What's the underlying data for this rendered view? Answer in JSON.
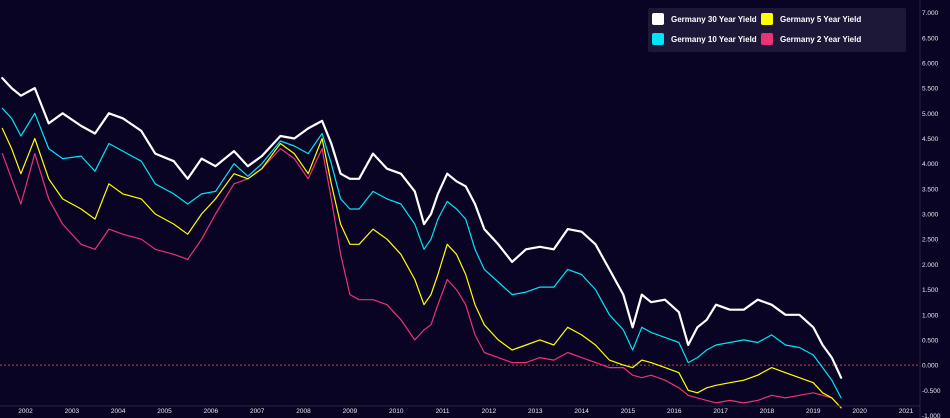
{
  "chart_data": {
    "type": "line",
    "title": "",
    "xlabel": "",
    "ylabel": "",
    "x_ticks": [
      "2002",
      "2003",
      "2004",
      "2005",
      "2006",
      "2007",
      "2008",
      "2009",
      "2010",
      "2011",
      "2012",
      "2013",
      "2014",
      "2015",
      "2016",
      "2017",
      "2018",
      "2019",
      "2020",
      "2021"
    ],
    "y_ticks": [
      "7.000",
      "6.500",
      "6.000",
      "5.500",
      "5.000",
      "4.500",
      "4.000",
      "3.500",
      "3.000",
      "2.500",
      "2.000",
      "1.500",
      "1.000",
      "0.500",
      "0.000",
      "-0.500",
      "-1.000"
    ],
    "xlim": [
      2001.45,
      2021.95
    ],
    "ylim": [
      -1.05,
      7.25
    ],
    "grid": false,
    "legend_position": "top-right",
    "reference_line": {
      "y": 0,
      "color": "#e0303a",
      "style": "dashed"
    },
    "series": [
      {
        "name": "Germany 30 Year Yield",
        "color": "#ffffff",
        "x": [
          2001.5,
          2001.7,
          2001.9,
          2002.2,
          2002.5,
          2002.8,
          2003.2,
          2003.5,
          2003.8,
          2004.1,
          2004.5,
          2004.8,
          2005.2,
          2005.5,
          2005.8,
          2006.1,
          2006.5,
          2006.8,
          2007.1,
          2007.5,
          2007.8,
          2008.1,
          2008.4,
          2008.6,
          2008.8,
          2009.0,
          2009.2,
          2009.5,
          2009.8,
          2010.1,
          2010.4,
          2010.6,
          2010.75,
          2010.9,
          2011.1,
          2011.3,
          2011.5,
          2011.7,
          2011.9,
          2012.2,
          2012.5,
          2012.8,
          2013.1,
          2013.4,
          2013.7,
          2014.0,
          2014.3,
          2014.6,
          2014.9,
          2015.1,
          2015.3,
          2015.5,
          2015.8,
          2016.1,
          2016.3,
          2016.5,
          2016.7,
          2016.9,
          2017.2,
          2017.5,
          2017.8,
          2018.1,
          2018.4,
          2018.7,
          2019.0,
          2019.2,
          2019.4,
          2019.6
        ],
        "y": [
          5.7,
          5.5,
          5.35,
          5.5,
          4.8,
          5.0,
          4.75,
          4.6,
          5.0,
          4.9,
          4.65,
          4.2,
          4.05,
          3.7,
          4.1,
          3.95,
          4.25,
          3.95,
          4.15,
          4.55,
          4.5,
          4.7,
          4.85,
          4.4,
          3.8,
          3.7,
          3.7,
          4.2,
          3.9,
          3.8,
          3.45,
          2.8,
          3.0,
          3.4,
          3.8,
          3.65,
          3.55,
          3.2,
          2.7,
          2.4,
          2.05,
          2.3,
          2.35,
          2.3,
          2.7,
          2.65,
          2.4,
          1.9,
          1.4,
          0.75,
          1.4,
          1.25,
          1.3,
          1.05,
          0.4,
          0.75,
          0.9,
          1.2,
          1.1,
          1.1,
          1.3,
          1.2,
          1.0,
          1.0,
          0.75,
          0.4,
          0.15,
          -0.25
        ]
      },
      {
        "name": "Germany 10 Year Yield",
        "color": "#00e5f5",
        "x": [
          2001.5,
          2001.7,
          2001.9,
          2002.2,
          2002.5,
          2002.8,
          2003.2,
          2003.5,
          2003.8,
          2004.1,
          2004.5,
          2004.8,
          2005.2,
          2005.5,
          2005.8,
          2006.1,
          2006.5,
          2006.8,
          2007.1,
          2007.5,
          2007.8,
          2008.1,
          2008.4,
          2008.6,
          2008.8,
          2009.0,
          2009.2,
          2009.5,
          2009.8,
          2010.1,
          2010.4,
          2010.6,
          2010.75,
          2010.9,
          2011.1,
          2011.3,
          2011.5,
          2011.7,
          2011.9,
          2012.2,
          2012.5,
          2012.8,
          2013.1,
          2013.4,
          2013.7,
          2014.0,
          2014.3,
          2014.6,
          2014.9,
          2015.1,
          2015.3,
          2015.5,
          2015.8,
          2016.1,
          2016.3,
          2016.5,
          2016.7,
          2016.9,
          2017.2,
          2017.5,
          2017.8,
          2018.1,
          2018.4,
          2018.7,
          2019.0,
          2019.2,
          2019.4,
          2019.6
        ],
        "y": [
          5.1,
          4.9,
          4.55,
          5.0,
          4.3,
          4.1,
          4.15,
          3.85,
          4.4,
          4.25,
          4.05,
          3.6,
          3.4,
          3.2,
          3.4,
          3.45,
          4.0,
          3.75,
          4.0,
          4.45,
          4.35,
          4.2,
          4.6,
          4.0,
          3.3,
          3.1,
          3.1,
          3.45,
          3.3,
          3.2,
          2.8,
          2.3,
          2.5,
          2.9,
          3.25,
          3.1,
          2.9,
          2.3,
          1.9,
          1.65,
          1.4,
          1.45,
          1.55,
          1.55,
          1.9,
          1.8,
          1.5,
          1.0,
          0.7,
          0.3,
          0.75,
          0.65,
          0.55,
          0.45,
          0.05,
          0.15,
          0.3,
          0.4,
          0.45,
          0.5,
          0.45,
          0.6,
          0.4,
          0.35,
          0.2,
          -0.05,
          -0.3,
          -0.65
        ]
      },
      {
        "name": "Germany 5 Year Yield",
        "color": "#ffff00",
        "x": [
          2001.5,
          2001.7,
          2001.9,
          2002.2,
          2002.5,
          2002.8,
          2003.2,
          2003.5,
          2003.8,
          2004.1,
          2004.5,
          2004.8,
          2005.2,
          2005.5,
          2005.8,
          2006.1,
          2006.5,
          2006.8,
          2007.1,
          2007.5,
          2007.8,
          2008.1,
          2008.4,
          2008.6,
          2008.8,
          2009.0,
          2009.2,
          2009.5,
          2009.8,
          2010.1,
          2010.4,
          2010.6,
          2010.75,
          2010.9,
          2011.1,
          2011.3,
          2011.5,
          2011.7,
          2011.9,
          2012.2,
          2012.5,
          2012.8,
          2013.1,
          2013.4,
          2013.7,
          2014.0,
          2014.3,
          2014.6,
          2014.9,
          2015.1,
          2015.3,
          2015.5,
          2015.8,
          2016.1,
          2016.3,
          2016.5,
          2016.7,
          2016.9,
          2017.2,
          2017.5,
          2017.8,
          2018.1,
          2018.4,
          2018.7,
          2019.0,
          2019.2,
          2019.4,
          2019.6
        ],
        "y": [
          4.7,
          4.3,
          3.8,
          4.5,
          3.7,
          3.3,
          3.1,
          2.9,
          3.6,
          3.4,
          3.3,
          3.0,
          2.8,
          2.6,
          3.0,
          3.3,
          3.8,
          3.7,
          3.9,
          4.4,
          4.2,
          3.8,
          4.5,
          3.6,
          2.8,
          2.4,
          2.4,
          2.7,
          2.5,
          2.2,
          1.7,
          1.2,
          1.4,
          1.8,
          2.4,
          2.2,
          1.8,
          1.2,
          0.8,
          0.5,
          0.3,
          0.4,
          0.5,
          0.4,
          0.75,
          0.6,
          0.4,
          0.1,
          0.0,
          -0.05,
          0.1,
          0.05,
          -0.05,
          -0.15,
          -0.5,
          -0.55,
          -0.45,
          -0.4,
          -0.35,
          -0.3,
          -0.2,
          -0.05,
          -0.15,
          -0.25,
          -0.35,
          -0.55,
          -0.65,
          -0.85
        ]
      },
      {
        "name": "Germany 2 Year Yield",
        "color": "#e83472",
        "x": [
          2001.5,
          2001.7,
          2001.9,
          2002.2,
          2002.5,
          2002.8,
          2003.2,
          2003.5,
          2003.8,
          2004.1,
          2004.5,
          2004.8,
          2005.2,
          2005.5,
          2005.8,
          2006.1,
          2006.5,
          2006.8,
          2007.1,
          2007.5,
          2007.8,
          2008.1,
          2008.4,
          2008.6,
          2008.8,
          2009.0,
          2009.2,
          2009.5,
          2009.8,
          2010.1,
          2010.4,
          2010.6,
          2010.75,
          2010.9,
          2011.1,
          2011.3,
          2011.5,
          2011.7,
          2011.9,
          2012.2,
          2012.5,
          2012.8,
          2013.1,
          2013.4,
          2013.7,
          2014.0,
          2014.3,
          2014.6,
          2014.9,
          2015.1,
          2015.3,
          2015.5,
          2015.8,
          2016.1,
          2016.3,
          2016.5,
          2016.7,
          2016.9,
          2017.2,
          2017.5,
          2017.8,
          2018.1,
          2018.4,
          2018.7,
          2019.0,
          2019.2,
          2019.4,
          2019.6
        ],
        "y": [
          4.2,
          3.7,
          3.2,
          4.2,
          3.3,
          2.8,
          2.4,
          2.3,
          2.7,
          2.6,
          2.5,
          2.3,
          2.2,
          2.1,
          2.5,
          3.0,
          3.6,
          3.7,
          3.9,
          4.3,
          4.1,
          3.7,
          4.3,
          3.3,
          2.2,
          1.4,
          1.3,
          1.3,
          1.2,
          0.9,
          0.5,
          0.7,
          0.8,
          1.2,
          1.7,
          1.5,
          1.2,
          0.6,
          0.25,
          0.15,
          0.05,
          0.05,
          0.15,
          0.1,
          0.25,
          0.15,
          0.05,
          -0.05,
          -0.05,
          -0.2,
          -0.25,
          -0.2,
          -0.3,
          -0.45,
          -0.6,
          -0.65,
          -0.7,
          -0.75,
          -0.7,
          -0.75,
          -0.7,
          -0.6,
          -0.65,
          -0.6,
          -0.55,
          -0.6,
          -0.65,
          -0.85
        ]
      }
    ]
  }
}
